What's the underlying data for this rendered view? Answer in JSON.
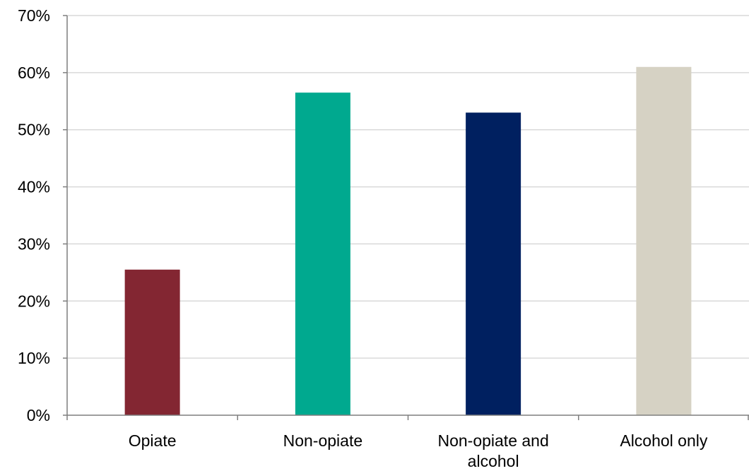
{
  "chart_data": {
    "type": "bar",
    "categories": [
      [
        "Opiate"
      ],
      [
        "Non-opiate"
      ],
      [
        "Non-opiate and",
        "alcohol"
      ],
      [
        "Alcohol only"
      ]
    ],
    "values": [
      25.5,
      56.5,
      53,
      61
    ],
    "colors": [
      "#832632",
      "#00a98f",
      "#002060",
      "#d6d2c4"
    ],
    "ylim": [
      0,
      70
    ],
    "yticks": [
      0,
      10,
      20,
      30,
      40,
      50,
      60,
      70
    ],
    "ytick_format": "percent",
    "gridlines": true,
    "gridline_color": "#d9d9d9",
    "axis_color": "#7f7f7f",
    "title": "",
    "xlabel": "",
    "ylabel": "",
    "legend": "none"
  }
}
